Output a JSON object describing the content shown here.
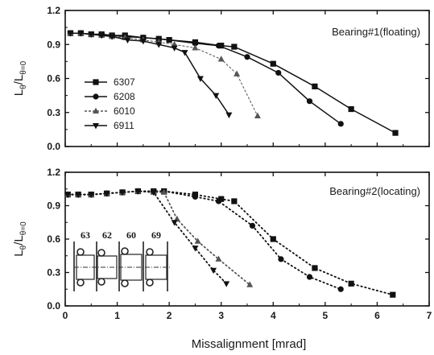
{
  "chart_data": [
    {
      "type": "line",
      "title": "Bearing#1(floating)",
      "xlabel": "Missalignment [mrad]",
      "ylabel": "Lθ/Lθ=0",
      "xlim": [
        0,
        7
      ],
      "ylim": [
        0.0,
        1.2
      ],
      "x_ticks": [
        "0",
        "1",
        "2",
        "3",
        "4",
        "5",
        "6",
        "7"
      ],
      "y_ticks": [
        "0.0",
        "0.3",
        "0.6",
        "0.9",
        "1.2"
      ],
      "grid": false,
      "legend_position": "left",
      "line_style": "solid",
      "series": [
        {
          "name": "6307",
          "marker": "square",
          "color": "#111111",
          "points": [
            [
              0.1,
              1.0
            ],
            [
              0.3,
              1.0
            ],
            [
              0.5,
              0.99
            ],
            [
              0.7,
              0.99
            ],
            [
              0.9,
              0.98
            ],
            [
              1.15,
              0.98
            ],
            [
              1.5,
              0.96
            ],
            [
              1.8,
              0.95
            ],
            [
              2.0,
              0.94
            ],
            [
              2.5,
              0.92
            ],
            [
              3.0,
              0.89
            ],
            [
              3.25,
              0.88
            ],
            [
              4.0,
              0.73
            ],
            [
              4.8,
              0.53
            ],
            [
              5.5,
              0.33
            ],
            [
              6.35,
              0.12
            ]
          ]
        },
        {
          "name": "6208",
          "marker": "circle",
          "color": "#111111",
          "points": [
            [
              0.1,
              1.0
            ],
            [
              0.3,
              1.0
            ],
            [
              0.5,
              0.99
            ],
            [
              0.7,
              0.99
            ],
            [
              0.9,
              0.98
            ],
            [
              1.15,
              0.97
            ],
            [
              1.5,
              0.96
            ],
            [
              1.8,
              0.95
            ],
            [
              2.0,
              0.94
            ],
            [
              2.5,
              0.91
            ],
            [
              2.95,
              0.89
            ],
            [
              3.5,
              0.79
            ],
            [
              4.1,
              0.65
            ],
            [
              4.7,
              0.4
            ],
            [
              5.3,
              0.2
            ]
          ]
        },
        {
          "name": "6010",
          "marker": "triangle-up",
          "color": "#555555",
          "points": [
            [
              0.1,
              1.0
            ],
            [
              0.3,
              1.0
            ],
            [
              0.5,
              0.99
            ],
            [
              0.7,
              0.98
            ],
            [
              0.9,
              0.97
            ],
            [
              1.15,
              0.96
            ],
            [
              1.5,
              0.94
            ],
            [
              1.8,
              0.92
            ],
            [
              2.1,
              0.9
            ],
            [
              2.5,
              0.87
            ],
            [
              3.0,
              0.77
            ],
            [
              3.3,
              0.64
            ],
            [
              3.7,
              0.27
            ]
          ]
        },
        {
          "name": "6911",
          "marker": "triangle-down",
          "color": "#111111",
          "points": [
            [
              0.1,
              1.0
            ],
            [
              0.3,
              1.0
            ],
            [
              0.5,
              0.99
            ],
            [
              0.7,
              0.98
            ],
            [
              0.9,
              0.97
            ],
            [
              1.2,
              0.94
            ],
            [
              1.5,
              0.93
            ],
            [
              1.8,
              0.9
            ],
            [
              2.1,
              0.87
            ],
            [
              2.3,
              0.83
            ],
            [
              2.6,
              0.6
            ],
            [
              2.9,
              0.45
            ],
            [
              3.15,
              0.28
            ]
          ]
        }
      ]
    },
    {
      "type": "line",
      "title": "Bearing#2(locating)",
      "xlabel": "Missalignment [mrad]",
      "ylabel": "Lθ/Lθ=0",
      "xlim": [
        0,
        7
      ],
      "ylim": [
        0.0,
        1.2
      ],
      "x_ticks": [
        "0",
        "1",
        "2",
        "3",
        "4",
        "5",
        "6",
        "7"
      ],
      "y_ticks": [
        "0.0",
        "0.3",
        "0.6",
        "0.9",
        "1.2"
      ],
      "grid": false,
      "line_style": "dotted",
      "inset_labels": [
        "63",
        "62",
        "60",
        "69"
      ],
      "series": [
        {
          "name": "6307",
          "marker": "square",
          "color": "#111111",
          "points": [
            [
              0.05,
              1.0
            ],
            [
              0.25,
              1.0
            ],
            [
              0.5,
              1.0
            ],
            [
              0.8,
              1.01
            ],
            [
              1.1,
              1.02
            ],
            [
              1.4,
              1.03
            ],
            [
              1.7,
              1.03
            ],
            [
              1.9,
              1.03
            ],
            [
              2.5,
              1.0
            ],
            [
              3.0,
              0.96
            ],
            [
              3.25,
              0.94
            ],
            [
              4.0,
              0.6
            ],
            [
              4.8,
              0.34
            ],
            [
              5.5,
              0.2
            ],
            [
              6.3,
              0.1
            ]
          ]
        },
        {
          "name": "6208",
          "marker": "circle",
          "color": "#111111",
          "points": [
            [
              0.05,
              1.0
            ],
            [
              0.25,
              1.0
            ],
            [
              0.5,
              1.0
            ],
            [
              0.8,
              1.01
            ],
            [
              1.1,
              1.02
            ],
            [
              1.4,
              1.03
            ],
            [
              1.7,
              1.03
            ],
            [
              1.9,
              1.03
            ],
            [
              2.5,
              0.98
            ],
            [
              2.95,
              0.94
            ],
            [
              3.6,
              0.72
            ],
            [
              4.15,
              0.42
            ],
            [
              4.7,
              0.26
            ],
            [
              5.3,
              0.15
            ]
          ]
        },
        {
          "name": "6010",
          "marker": "triangle-up",
          "color": "#555555",
          "points": [
            [
              0.05,
              1.0
            ],
            [
              0.25,
              1.0
            ],
            [
              0.5,
              1.0
            ],
            [
              0.8,
              1.01
            ],
            [
              1.1,
              1.02
            ],
            [
              1.4,
              1.03
            ],
            [
              1.7,
              1.02
            ],
            [
              1.9,
              1.02
            ],
            [
              2.15,
              0.78
            ],
            [
              2.55,
              0.58
            ],
            [
              2.95,
              0.42
            ],
            [
              3.55,
              0.19
            ]
          ]
        },
        {
          "name": "6911",
          "marker": "triangle-down",
          "color": "#111111",
          "points": [
            [
              0.05,
              1.0
            ],
            [
              0.25,
              1.0
            ],
            [
              0.5,
              1.0
            ],
            [
              0.8,
              1.01
            ],
            [
              1.1,
              1.02
            ],
            [
              1.4,
              1.03
            ],
            [
              1.7,
              1.02
            ],
            [
              2.1,
              0.75
            ],
            [
              2.5,
              0.52
            ],
            [
              2.85,
              0.32
            ],
            [
              3.1,
              0.2
            ]
          ]
        }
      ]
    }
  ]
}
